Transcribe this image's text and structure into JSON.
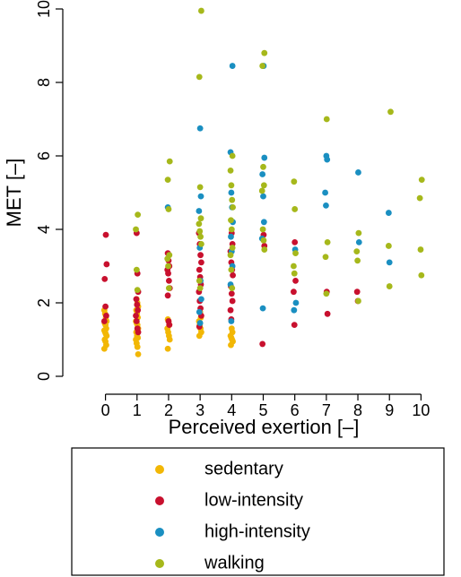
{
  "chart_data": {
    "type": "scatter",
    "xlabel": "Perceived exertion [–]",
    "ylabel": "MET [–]",
    "xlim": [
      -0.5,
      10.5
    ],
    "ylim": [
      0,
      10
    ],
    "x_ticks": [
      "0",
      "1",
      "2",
      "3",
      "4",
      "5",
      "6",
      "7",
      "8",
      "9",
      "10"
    ],
    "y_ticks": [
      "0",
      "2",
      "4",
      "6",
      "8",
      "10"
    ],
    "grid": false,
    "legend_placement": "bottom",
    "series": [
      {
        "name": "sedentary",
        "color": "#F2B705",
        "x": [
          0,
          0,
          0,
          0,
          0,
          0,
          0,
          0,
          0,
          0,
          0,
          0,
          0,
          0,
          0,
          1,
          1,
          1,
          1,
          1,
          1,
          1,
          1,
          1,
          1,
          1,
          1,
          1,
          1,
          1,
          1,
          1,
          2,
          2,
          2,
          2,
          2,
          2,
          2,
          2,
          3,
          3,
          3,
          3,
          3,
          3,
          3,
          4,
          4,
          4,
          4,
          4,
          4,
          4
        ],
        "y": [
          1.8,
          1.7,
          1.6,
          1.5,
          1.45,
          1.4,
          1.3,
          1.25,
          1.2,
          1.15,
          1.1,
          1.0,
          0.95,
          0.85,
          0.75,
          2.1,
          2.0,
          1.9,
          1.8,
          1.7,
          1.6,
          1.5,
          1.45,
          1.4,
          1.3,
          1.2,
          1.1,
          1.05,
          1.0,
          0.9,
          0.8,
          0.6,
          1.55,
          1.5,
          1.4,
          1.3,
          1.2,
          1.1,
          1.0,
          0.75,
          1.75,
          1.6,
          1.5,
          1.4,
          1.3,
          1.2,
          1.1,
          1.3,
          1.2,
          1.1,
          1.05,
          1.0,
          0.95,
          0.85
        ]
      },
      {
        "name": "low-intensity",
        "color": "#C8102E",
        "x": [
          0,
          0,
          0,
          0,
          0,
          0,
          1,
          1,
          1,
          1,
          1,
          1,
          1,
          1,
          1,
          1,
          2,
          2,
          2,
          2,
          2,
          2,
          2,
          2,
          2,
          2,
          3,
          3,
          3,
          3,
          3,
          3,
          3,
          3,
          3,
          3,
          3,
          3,
          4,
          4,
          4,
          4,
          4,
          4,
          4,
          4,
          4,
          4,
          4,
          5,
          5,
          5,
          6,
          6,
          6,
          6,
          7,
          7,
          8,
          8
        ],
        "y": [
          3.85,
          3.05,
          2.65,
          1.9,
          1.65,
          1.5,
          3.9,
          2.8,
          2.3,
          2.1,
          1.95,
          1.8,
          1.65,
          1.5,
          1.3,
          1.2,
          3.35,
          3.15,
          3.0,
          2.9,
          2.8,
          2.6,
          2.4,
          2.2,
          1.5,
          1.4,
          3.9,
          3.6,
          3.3,
          3.1,
          2.9,
          2.7,
          2.5,
          2.3,
          2.05,
          1.85,
          1.65,
          1.35,
          3.9,
          3.6,
          3.4,
          3.1,
          2.9,
          2.75,
          2.45,
          2.25,
          2.05,
          1.8,
          1.55,
          3.85,
          3.55,
          0.88,
          3.65,
          2.6,
          2.3,
          1.4,
          2.3,
          1.7,
          2.3,
          2.05
        ]
      },
      {
        "name": "high-intensity",
        "color": "#1A8FC1",
        "x": [
          2,
          3,
          3,
          3,
          3,
          3,
          3,
          3,
          3,
          4,
          4,
          4,
          4,
          4,
          4,
          4,
          4,
          4,
          4,
          5,
          5,
          5,
          5,
          5,
          5,
          5,
          6,
          6,
          6,
          7,
          7,
          7,
          7,
          8,
          8,
          9,
          9
        ],
        "y": [
          4.6,
          6.75,
          4.9,
          4.5,
          3.5,
          2.6,
          2.1,
          1.75,
          1.45,
          8.45,
          6.1,
          5.0,
          4.6,
          4.2,
          3.8,
          3.4,
          3.0,
          2.5,
          1.5,
          8.45,
          5.95,
          5.5,
          4.9,
          4.2,
          3.75,
          1.85,
          3.45,
          2.0,
          1.8,
          6.0,
          5.9,
          5.0,
          4.65,
          5.55,
          3.65,
          4.45,
          3.1
        ]
      },
      {
        "name": "walking",
        "color": "#A6B81B",
        "x": [
          1,
          1,
          1,
          1,
          2,
          2,
          2,
          2,
          2,
          2,
          2,
          3,
          3,
          3,
          3,
          3,
          3,
          3,
          3,
          3,
          3,
          4,
          4,
          4,
          4,
          4,
          4,
          4,
          4,
          4,
          4,
          4,
          5,
          5,
          5,
          5,
          5,
          5,
          5,
          5,
          6,
          6,
          6,
          6,
          6,
          7,
          7,
          7,
          7,
          8,
          8,
          8,
          8,
          9,
          9,
          9,
          10,
          10,
          10,
          10
        ],
        "y": [
          4.4,
          4.0,
          2.9,
          2.35,
          5.85,
          5.35,
          4.55,
          3.3,
          3.2,
          3.0,
          2.4,
          9.95,
          8.15,
          5.15,
          4.3,
          4.15,
          3.95,
          3.8,
          3.6,
          2.6,
          2.4,
          6.0,
          5.6,
          5.2,
          4.8,
          4.6,
          4.25,
          4.0,
          3.5,
          3.3,
          2.9,
          2.4,
          8.8,
          8.45,
          5.7,
          5.2,
          5.05,
          4.0,
          3.7,
          3.45,
          5.3,
          4.55,
          3.35,
          3.0,
          2.8,
          7.0,
          3.65,
          3.25,
          2.25,
          3.9,
          3.4,
          3.15,
          2.05,
          7.2,
          3.55,
          2.45,
          5.35,
          4.85,
          3.45,
          2.75
        ]
      }
    ]
  }
}
